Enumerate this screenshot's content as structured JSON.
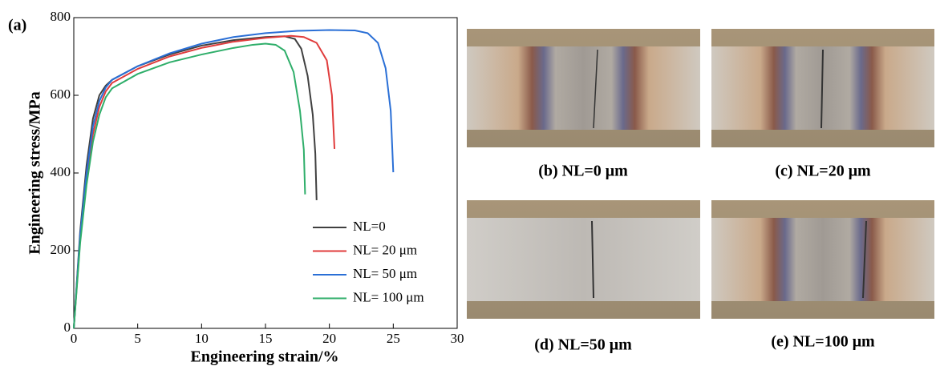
{
  "chart_data": {
    "type": "line",
    "panel_label": "(a)",
    "xlabel": "Engineering strain/%",
    "ylabel": "Engineering stress/MPa",
    "xlim": [
      0,
      30
    ],
    "xticks": [
      0,
      5,
      10,
      15,
      20,
      25,
      30
    ],
    "ylim": [
      0,
      800
    ],
    "yticks": [
      0,
      200,
      400,
      600,
      800
    ],
    "legend": "lower right",
    "series": [
      {
        "name": "NL=0",
        "color": "#404040",
        "x": [
          0,
          0.5,
          1,
          1.5,
          2,
          2.5,
          3,
          5,
          7.5,
          10,
          12.5,
          15,
          16.5,
          17.3,
          17.8,
          18.3,
          18.7,
          18.9,
          19
        ],
        "values": [
          0,
          250,
          420,
          540,
          600,
          625,
          640,
          675,
          705,
          728,
          742,
          750,
          752,
          745,
          720,
          650,
          550,
          450,
          330
        ]
      },
      {
        "name": "NL= 20 μm",
        "color": "#e03c3c",
        "x": [
          0,
          0.5,
          1,
          1.5,
          2,
          2.5,
          3,
          5,
          7.5,
          10,
          12.5,
          15,
          17,
          18,
          19,
          19.8,
          20.2,
          20.4
        ],
        "values": [
          0,
          230,
          390,
          500,
          570,
          610,
          632,
          668,
          700,
          722,
          738,
          748,
          753,
          750,
          735,
          690,
          600,
          462
        ]
      },
      {
        "name": "NL= 50 μm",
        "color": "#2a6fd6",
        "x": [
          0,
          0.5,
          1,
          1.5,
          2,
          2.5,
          3,
          5,
          7.5,
          10,
          12.5,
          15,
          17.5,
          20,
          22,
          23,
          23.8,
          24.4,
          24.8,
          25
        ],
        "values": [
          0,
          240,
          400,
          520,
          585,
          620,
          640,
          675,
          708,
          733,
          750,
          760,
          766,
          768,
          767,
          760,
          735,
          670,
          560,
          402
        ]
      },
      {
        "name": "NL= 100 μm",
        "color": "#2fae6a",
        "x": [
          0,
          0.5,
          1,
          1.5,
          2,
          2.5,
          3,
          5,
          7.5,
          10,
          12.5,
          14,
          15,
          15.8,
          16.5,
          17.2,
          17.7,
          18,
          18.1
        ],
        "values": [
          0,
          220,
          370,
          480,
          550,
          595,
          618,
          655,
          685,
          705,
          722,
          730,
          733,
          730,
          715,
          660,
          560,
          460,
          345
        ]
      }
    ]
  },
  "photos": [
    {
      "caption": "(b) NL=0 μm"
    },
    {
      "caption": "(c) NL=20 μm"
    },
    {
      "caption": "(d) NL=50 μm"
    },
    {
      "caption": "(e) NL=100 μm"
    }
  ]
}
